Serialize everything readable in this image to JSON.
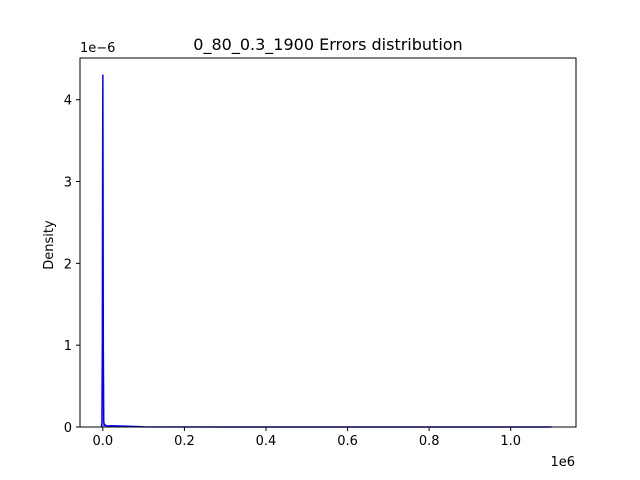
{
  "chart_data": {
    "type": "area",
    "title": "0_80_0.3_1900 Errors distribution",
    "xlabel": "",
    "ylabel": "Density",
    "x_offset_label": "1e6",
    "y_offset_label": "1e−6",
    "x_scale": 1000000,
    "y_scale": 1e-06,
    "xlim": [
      -56000,
      1160000
    ],
    "ylim": [
      0,
      4.51e-06
    ],
    "x_ticks": [
      0,
      200000,
      400000,
      600000,
      800000,
      1000000
    ],
    "x_tick_labels": [
      "0.0",
      "0.2",
      "0.4",
      "0.6",
      "0.8",
      "1.0"
    ],
    "y_ticks": [
      0,
      1e-06,
      2e-06,
      3e-06,
      4e-06
    ],
    "y_tick_labels": [
      "0",
      "1",
      "2",
      "3",
      "4"
    ],
    "grid": false,
    "series": [
      {
        "color": "#0000ff",
        "x": [
          -3500,
          -2200,
          -1200,
          -600,
          0,
          500,
          1100,
          2200,
          3500,
          6000,
          10000,
          20000,
          40000,
          70000,
          100000,
          300000,
          600000,
          1100000
        ],
        "y": [
          0,
          5e-08,
          1e-06,
          3e-06,
          4.3e-06,
          3e-06,
          1e-06,
          7e-08,
          2e-08,
          2.5e-08,
          1e-08,
          1.5e-08,
          1.2e-08,
          8e-09,
          2e-09,
          5e-10,
          3e-10,
          2e-10
        ]
      }
    ]
  }
}
